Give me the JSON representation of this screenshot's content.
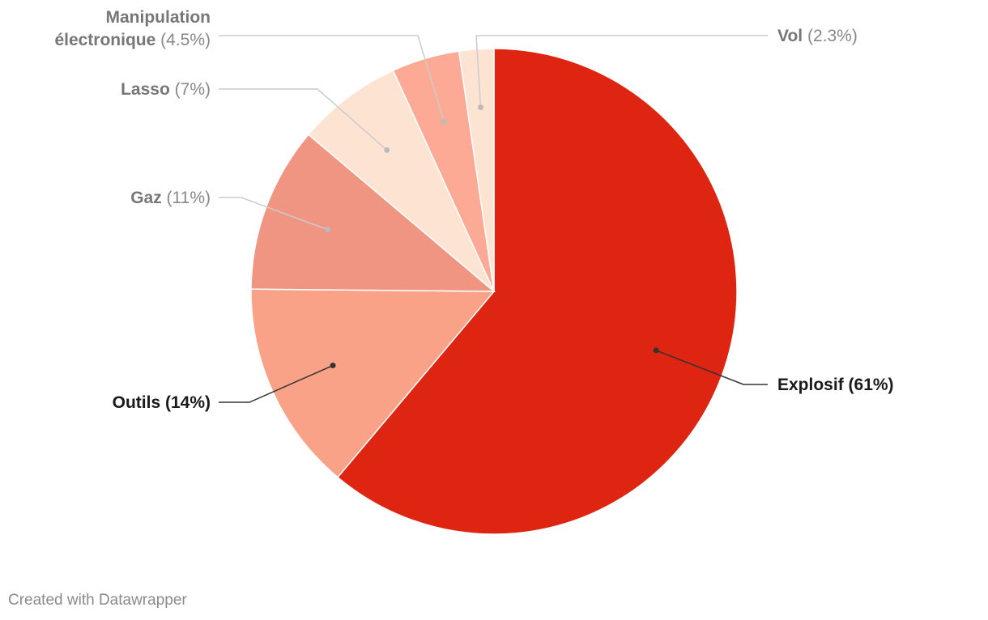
{
  "chart_data": {
    "type": "pie",
    "title": "",
    "slices": [
      {
        "label": "Explosif",
        "value": 61,
        "display": "61%",
        "color": "#dd2511"
      },
      {
        "label": "Outils",
        "value": 14,
        "display": "14%",
        "color": "#f9a287"
      },
      {
        "label": "Gaz",
        "value": 11,
        "display": "11%",
        "color": "#ef9582"
      },
      {
        "label": "Lasso",
        "value": 7,
        "display": "7%",
        "color": "#fde3d2"
      },
      {
        "label": "Manipulation électronique",
        "value": 4.5,
        "display": "4.5%",
        "color": "#fca996"
      },
      {
        "label": "Vol",
        "value": 2.3,
        "display": "2.3%",
        "color": "#fde3d2"
      }
    ]
  },
  "footer": {
    "credit": "Created with Datawrapper"
  }
}
